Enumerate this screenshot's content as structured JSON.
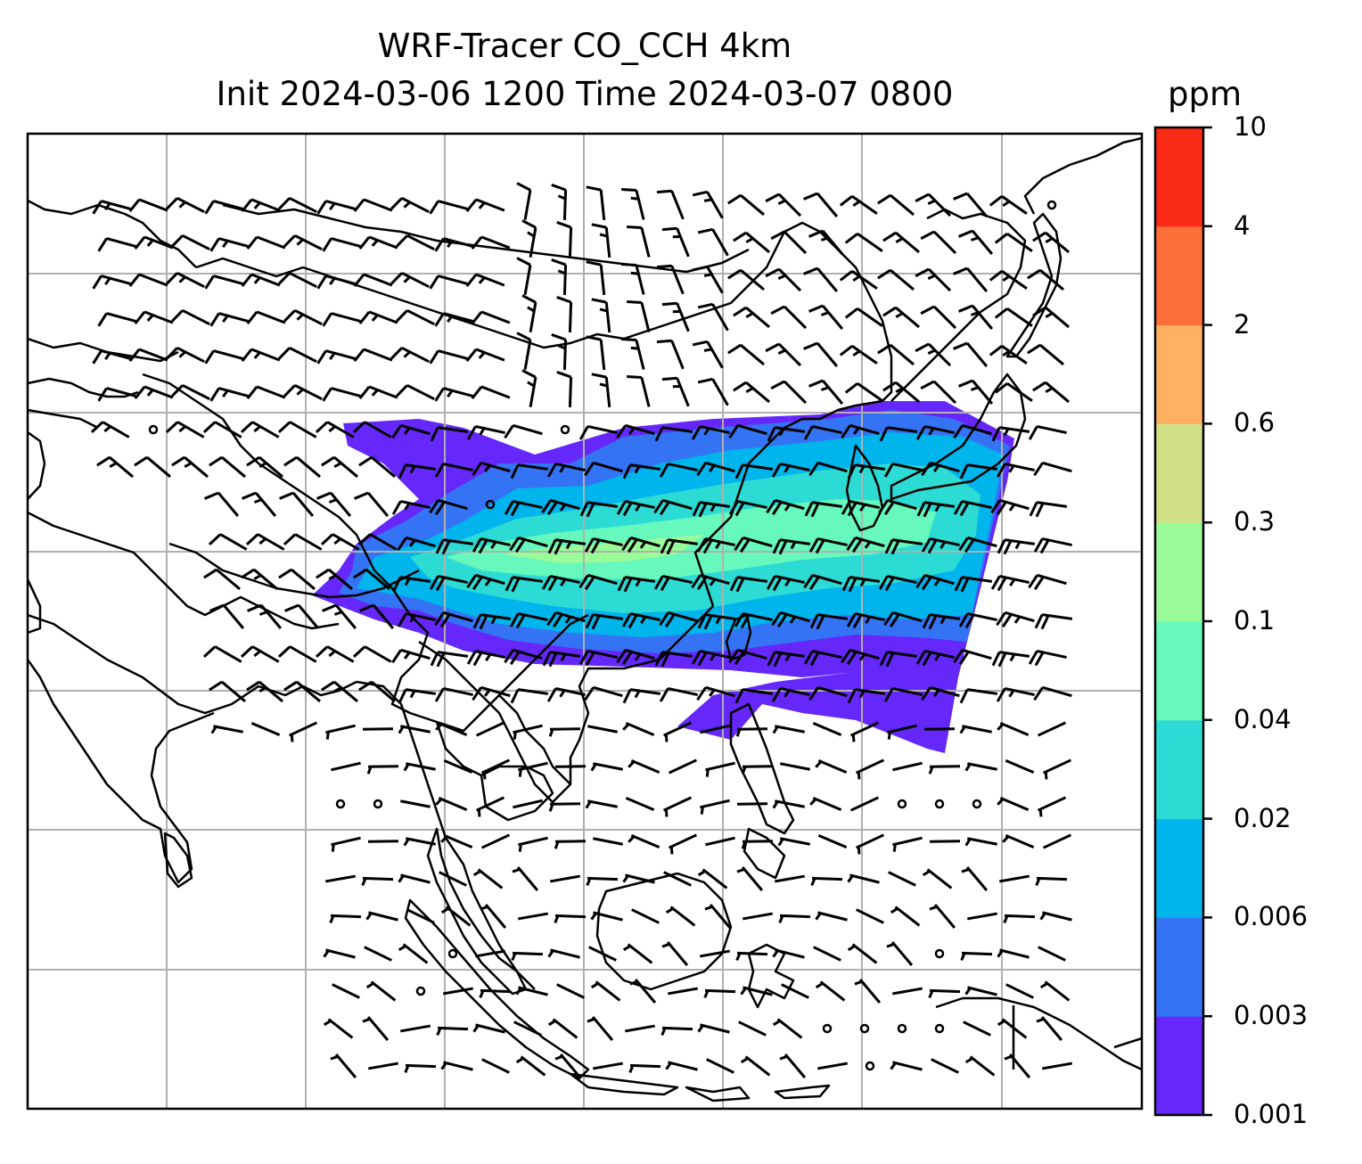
{
  "title": {
    "line1": "WRF-Tracer CO_CCH 4km",
    "line2": "Init 2024-03-06 1200 Time 2024-03-07 0800"
  },
  "colorbar": {
    "units": "ppm",
    "levels": [
      "0.001",
      "0.003",
      "0.006",
      "0.02",
      "0.04",
      "0.1",
      "0.3",
      "0.6",
      "2",
      "4",
      "10"
    ],
    "colors": [
      "#6628fa",
      "#3474f4",
      "#00b4ec",
      "#2cdcd4",
      "#66f8bc",
      "#9afc98",
      "#d0e084",
      "#ffb060",
      "#fd6f38",
      "#fb2b16"
    ]
  },
  "map": {
    "layers": [
      "coastlines",
      "country-borders",
      "lat-lon-gridlines",
      "wind-barbs",
      "tracer-concentration-fill"
    ],
    "fill_color_range": [
      "0.001",
      "0.1"
    ]
  }
}
